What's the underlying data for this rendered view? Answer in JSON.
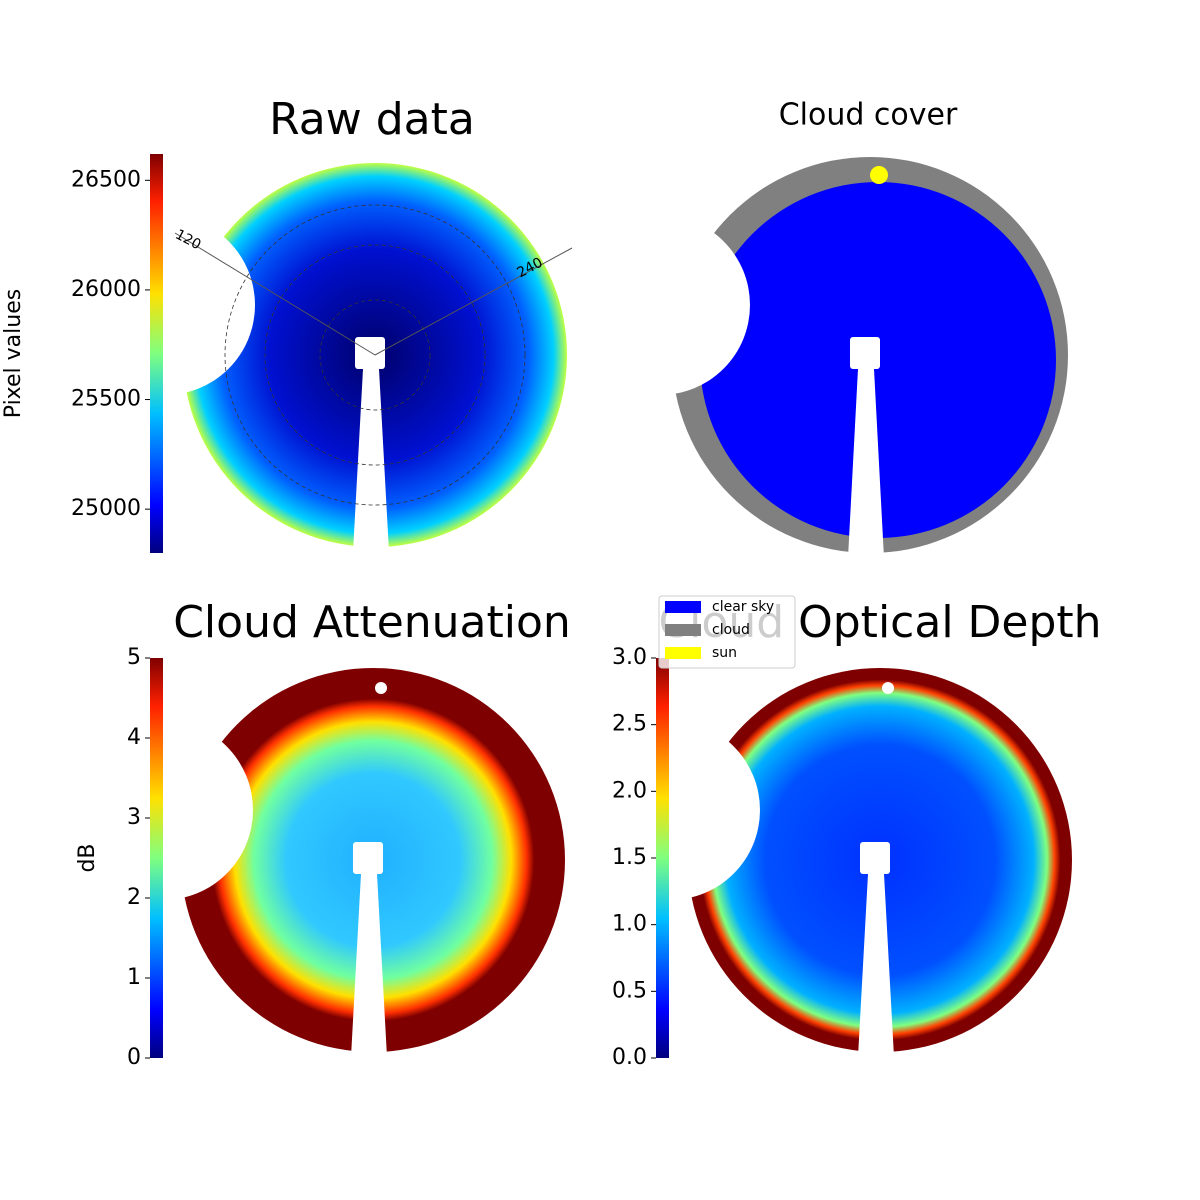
{
  "chart_data": [
    {
      "type": "image",
      "title": "Raw data",
      "colorbar": {
        "label": "Pixel values",
        "lim": [
          24800,
          26620
        ],
        "ticks": [
          25000,
          25500,
          26000,
          26500
        ]
      },
      "angle_labels": [
        "120",
        "240"
      ]
    },
    {
      "type": "image",
      "title": "Cloud cover",
      "legend": [
        {
          "name": "clear sky",
          "color": "#0000ff"
        },
        {
          "name": "cloud",
          "color": "#808080"
        },
        {
          "name": "sun",
          "color": "#ffff00"
        }
      ]
    },
    {
      "type": "image",
      "title": "Cloud Attenuation",
      "colorbar": {
        "label": "dB",
        "lim": [
          0,
          5
        ],
        "ticks": [
          0,
          1,
          2,
          3,
          4,
          5
        ]
      }
    },
    {
      "type": "image",
      "title": "Cloud Optical Depth",
      "colorbar": {
        "lim": [
          0,
          3
        ],
        "ticks": [
          {
            "value": 0,
            "label": "0.0"
          },
          {
            "value": 0.5,
            "label": "0.5"
          },
          {
            "value": 1,
            "label": "1.0"
          },
          {
            "value": 1.5,
            "label": "1.5"
          },
          {
            "value": 2,
            "label": "2.0"
          },
          {
            "value": 2.5,
            "label": "2.5"
          },
          {
            "value": 3,
            "label": "3.0"
          }
        ]
      }
    }
  ]
}
